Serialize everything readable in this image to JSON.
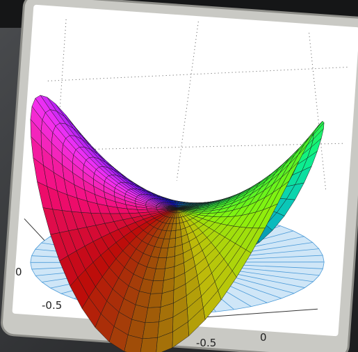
{
  "tick_labels": [
    "0",
    "-0.5",
    "-0.5",
    "0"
  ]
}
